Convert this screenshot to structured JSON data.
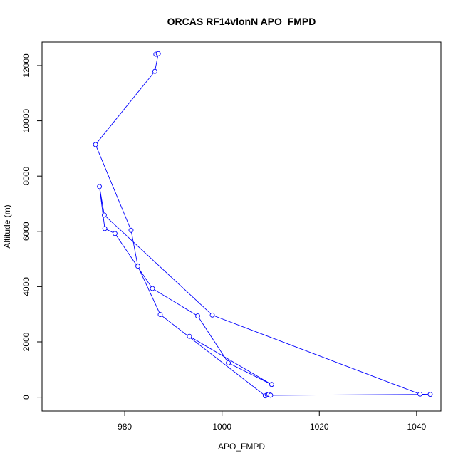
{
  "chart_data": {
    "type": "line",
    "title": "ORCAS RF14vlonN APO_FMPD",
    "xlabel": "APO_FMPD",
    "ylabel": "Altitude (m)",
    "xlim": [
      963,
      1045
    ],
    "ylim": [
      -500,
      12850
    ],
    "x_ticks": [
      980,
      1000,
      1020,
      1040
    ],
    "y_ticks": [
      0,
      2000,
      4000,
      6000,
      8000,
      10000,
      12000
    ],
    "markers": "open-circle",
    "grid": false,
    "legend": "none",
    "series": [
      {
        "color": "#0000ff",
        "x": [
          986.7,
          986.4,
          986.9,
          986.2,
          974.0,
          981.3,
          982.7,
          987.3,
          1008.9,
          1009.3,
          1009.6,
          1010.0,
          1042.8,
          1040.7,
          998.0,
          975.8,
          974.8,
          975.9,
          978.0,
          985.7,
          995.0,
          1001.3,
          1010.2,
          993.3
        ],
        "y": [
          12420,
          12410,
          12430,
          11790,
          9140,
          6040,
          4740,
          2990,
          50,
          90,
          100,
          70,
          100,
          110,
          2970,
          6590,
          7620,
          6100,
          5920,
          3930,
          2940,
          1240,
          460,
          2200
        ]
      }
    ]
  }
}
